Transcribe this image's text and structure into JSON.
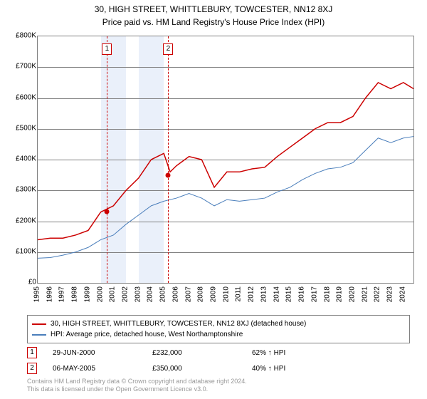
{
  "titles": {
    "line1": "30, HIGH STREET, WHITTLEBURY, TOWCESTER, NN12 8XJ",
    "line2": "Price paid vs. HM Land Registry's House Price Index (HPI)"
  },
  "chart": {
    "type": "line",
    "x_years": [
      1995,
      1996,
      1997,
      1998,
      1999,
      2000,
      2001,
      2002,
      2003,
      2004,
      2005,
      2006,
      2007,
      2008,
      2009,
      2010,
      2011,
      2012,
      2013,
      2014,
      2015,
      2016,
      2017,
      2018,
      2019,
      2020,
      2021,
      2022,
      2023,
      2024
    ],
    "y_ticks": [
      0,
      100000,
      200000,
      300000,
      400000,
      500000,
      600000,
      700000,
      800000
    ],
    "y_tick_labels": [
      "£0",
      "£100K",
      "£200K",
      "£300K",
      "£400K",
      "£500K",
      "£600K",
      "£700K",
      "£800K"
    ],
    "ylim": [
      0,
      800000
    ],
    "shade_bands": [
      [
        2000,
        2001
      ],
      [
        2001,
        2002
      ],
      [
        2003,
        2004
      ],
      [
        2004,
        2005
      ]
    ],
    "shade_color": "#eaf0fa",
    "grid_color": "#808080",
    "background_color": "#ffffff",
    "series": [
      {
        "name": "price_paid",
        "color": "#cc0000",
        "width": 1.5,
        "points": [
          [
            1995,
            140000
          ],
          [
            1996,
            145000
          ],
          [
            1997,
            145000
          ],
          [
            1998,
            155000
          ],
          [
            1999,
            170000
          ],
          [
            2000,
            230000
          ],
          [
            2001,
            250000
          ],
          [
            2002,
            300000
          ],
          [
            2003,
            340000
          ],
          [
            2004,
            400000
          ],
          [
            2005,
            420000
          ],
          [
            2005.5,
            360000
          ],
          [
            2006,
            380000
          ],
          [
            2007,
            410000
          ],
          [
            2008,
            400000
          ],
          [
            2009,
            310000
          ],
          [
            2010,
            360000
          ],
          [
            2011,
            360000
          ],
          [
            2012,
            370000
          ],
          [
            2013,
            375000
          ],
          [
            2014,
            410000
          ],
          [
            2015,
            440000
          ],
          [
            2016,
            470000
          ],
          [
            2017,
            500000
          ],
          [
            2018,
            520000
          ],
          [
            2019,
            520000
          ],
          [
            2020,
            540000
          ],
          [
            2021,
            600000
          ],
          [
            2022,
            650000
          ],
          [
            2023,
            630000
          ],
          [
            2024,
            650000
          ],
          [
            2024.8,
            630000
          ]
        ]
      },
      {
        "name": "hpi",
        "color": "#4a7ebb",
        "width": 1,
        "points": [
          [
            1995,
            80000
          ],
          [
            1996,
            82000
          ],
          [
            1997,
            90000
          ],
          [
            1998,
            100000
          ],
          [
            1999,
            115000
          ],
          [
            2000,
            140000
          ],
          [
            2001,
            155000
          ],
          [
            2002,
            190000
          ],
          [
            2003,
            220000
          ],
          [
            2004,
            250000
          ],
          [
            2005,
            265000
          ],
          [
            2006,
            275000
          ],
          [
            2007,
            290000
          ],
          [
            2008,
            275000
          ],
          [
            2009,
            250000
          ],
          [
            2010,
            270000
          ],
          [
            2011,
            265000
          ],
          [
            2012,
            270000
          ],
          [
            2013,
            275000
          ],
          [
            2014,
            295000
          ],
          [
            2015,
            310000
          ],
          [
            2016,
            335000
          ],
          [
            2017,
            355000
          ],
          [
            2018,
            370000
          ],
          [
            2019,
            375000
          ],
          [
            2020,
            390000
          ],
          [
            2021,
            430000
          ],
          [
            2022,
            470000
          ],
          [
            2023,
            455000
          ],
          [
            2024,
            470000
          ],
          [
            2024.8,
            475000
          ]
        ]
      }
    ],
    "vlines": [
      {
        "x": 2000.5,
        "label": "1",
        "point_y": 232000
      },
      {
        "x": 2005.35,
        "label": "2",
        "point_y": 350000
      }
    ]
  },
  "legend": {
    "items": [
      {
        "color": "#cc0000",
        "label": "30, HIGH STREET, WHITTLEBURY, TOWCESTER, NN12 8XJ (detached house)"
      },
      {
        "color": "#4a7ebb",
        "label": "HPI: Average price, detached house, West Northamptonshire"
      }
    ]
  },
  "transactions": [
    {
      "n": "1",
      "date": "29-JUN-2000",
      "price": "£232,000",
      "pct": "62% ↑ HPI"
    },
    {
      "n": "2",
      "date": "06-MAY-2005",
      "price": "£350,000",
      "pct": "40% ↑ HPI"
    }
  ],
  "footnote": {
    "line1": "Contains HM Land Registry data © Crown copyright and database right 2024.",
    "line2": "This data is licensed under the Open Government Licence v3.0."
  }
}
